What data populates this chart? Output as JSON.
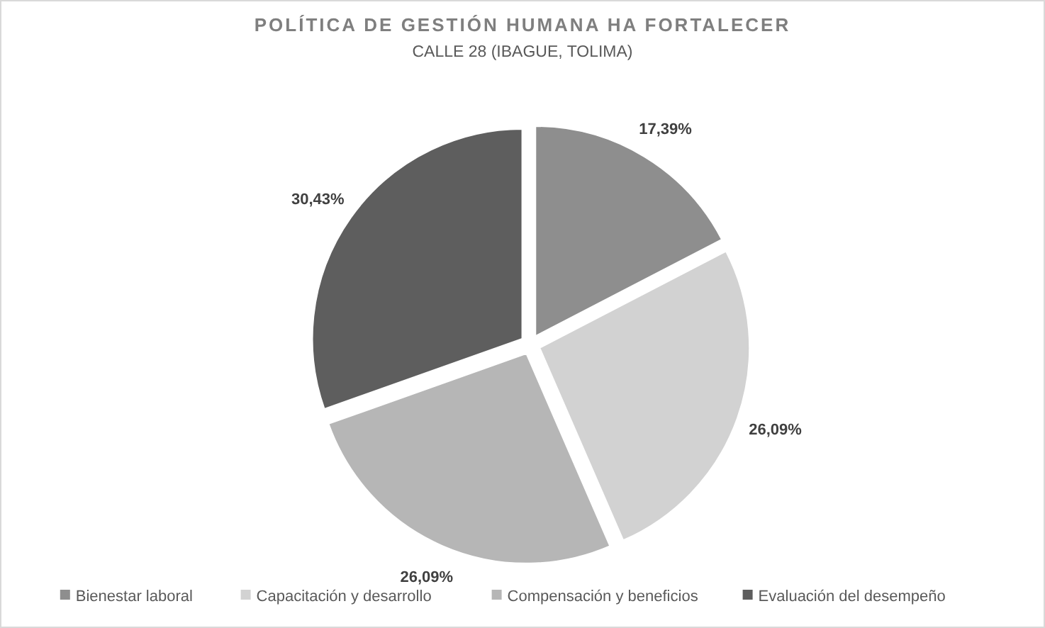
{
  "chart_data": {
    "type": "pie",
    "title": "POLÍTICA DE GESTIÓN HUMANA HA FORTALECER",
    "subtitle": "CALLE 28 (IBAGUE, TOLIMA)",
    "categories": [
      "Bienestar laboral",
      "Capacitación y desarrollo",
      "Compensación y beneficios",
      "Evaluación del desempeño"
    ],
    "values": [
      17.39,
      26.09,
      26.09,
      30.43
    ],
    "value_labels": [
      "17,39%",
      "26,09%",
      "26,09%",
      "30,43%"
    ],
    "colors": [
      "#8e8e8e",
      "#d2d2d2",
      "#b6b6b6",
      "#5e5e5e"
    ],
    "legend": "bottom"
  }
}
